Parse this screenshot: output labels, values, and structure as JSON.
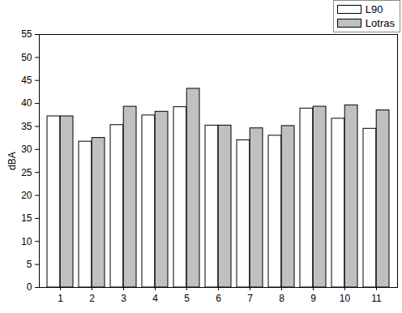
{
  "chart_data": {
    "type": "bar",
    "y_label": "dBA",
    "categories": [
      "1",
      "2",
      "3",
      "4",
      "5",
      "6",
      "7",
      "8",
      "9",
      "10",
      "11"
    ],
    "series": [
      {
        "name": "L90",
        "color": "#ffffff",
        "values": [
          37.2,
          31.7,
          35.3,
          37.4,
          39.2,
          35.2,
          32.0,
          33.0,
          38.9,
          36.7,
          34.5
        ]
      },
      {
        "name": "Lotras",
        "color": "#c0c0c0",
        "values": [
          37.2,
          32.5,
          39.3,
          38.2,
          43.2,
          35.2,
          34.6,
          35.1,
          39.3,
          39.6,
          38.5
        ]
      }
    ],
    "ylim": [
      0,
      55
    ],
    "yticks": [
      0,
      5,
      10,
      15,
      20,
      25,
      30,
      35,
      40,
      45,
      50,
      55
    ],
    "legend": "top-right"
  }
}
